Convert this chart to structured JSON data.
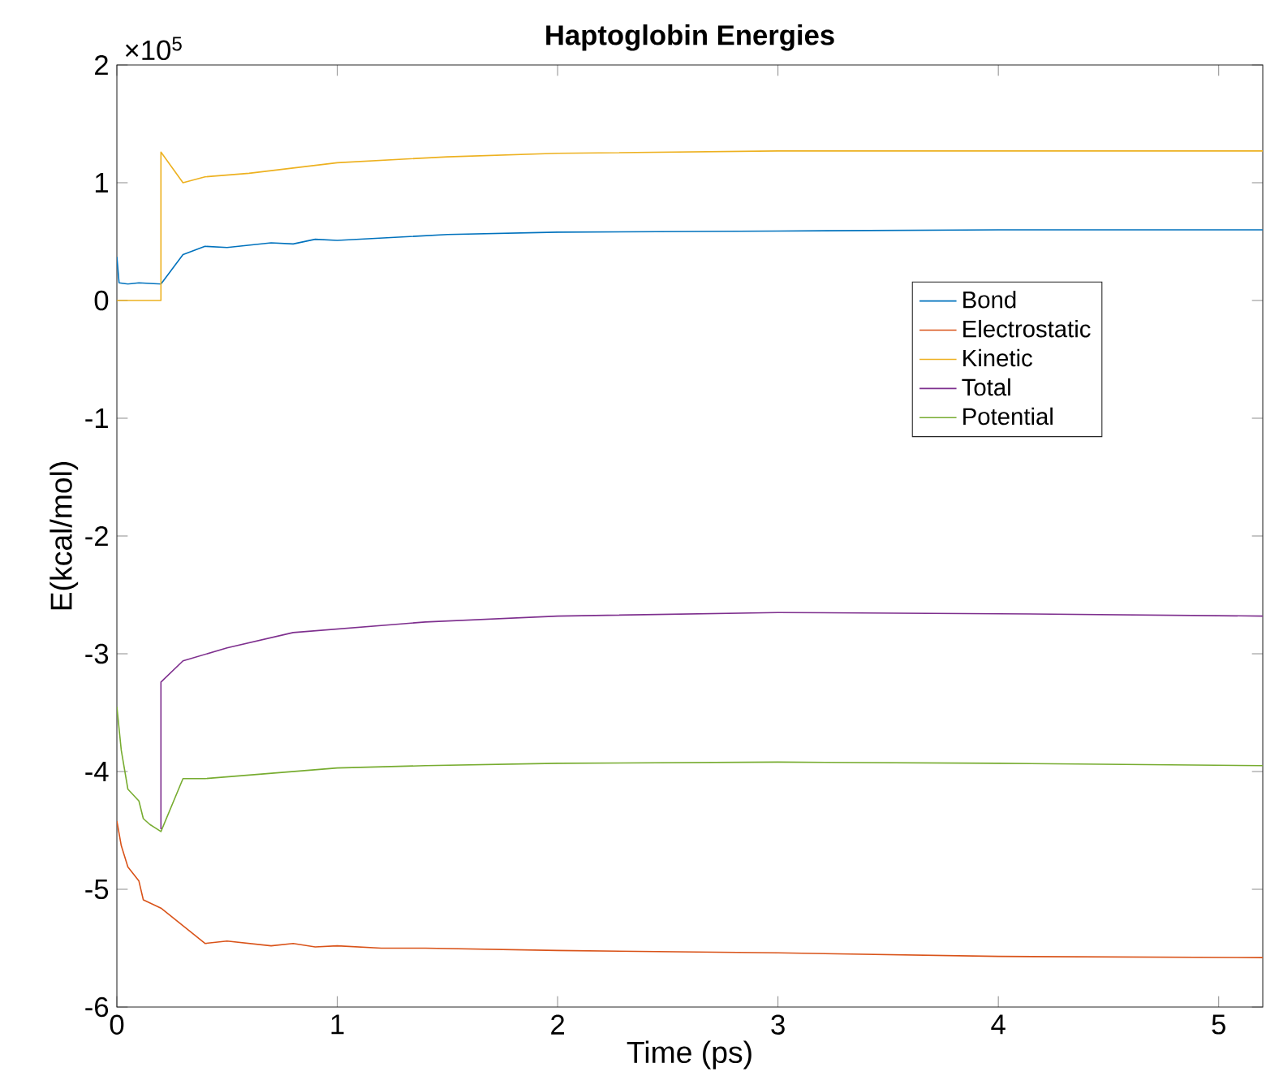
{
  "chart_data": {
    "type": "line",
    "title": "Haptoglobin Energies",
    "xlabel": "Time (ps)",
    "ylabel": "E(kcal/mol)",
    "xlim": [
      0,
      5.2
    ],
    "xticks": [
      0,
      1,
      2,
      3,
      4,
      5
    ],
    "ylim": [
      -6,
      2
    ],
    "yticks": [
      -6,
      -5,
      -4,
      -3,
      -2,
      -1,
      0,
      1,
      2
    ],
    "annotations": [
      "×10$^{5}$"
    ],
    "legend": "right",
    "series": [
      {
        "name": "Bond",
        "color": "#0072bd",
        "x": [
          0,
          0.01,
          0.05,
          0.1,
          0.2,
          0.3,
          0.4,
          0.5,
          0.7,
          0.8,
          0.9,
          1.0,
          1.5,
          2,
          3,
          4,
          5.2
        ],
        "values": [
          0.37,
          0.15,
          0.14,
          0.15,
          0.14,
          0.39,
          0.46,
          0.45,
          0.49,
          0.48,
          0.52,
          0.51,
          0.56,
          0.58,
          0.59,
          0.6,
          0.6
        ]
      },
      {
        "name": "Electrostatic",
        "color": "#d95319",
        "x": [
          0,
          0.02,
          0.05,
          0.1,
          0.12,
          0.2,
          0.4,
          0.5,
          0.7,
          0.8,
          0.9,
          1.0,
          1.2,
          1.4,
          2,
          3,
          4,
          5.2
        ],
        "values": [
          -4.42,
          -4.63,
          -4.81,
          -4.93,
          -5.09,
          -5.16,
          -5.46,
          -5.44,
          -5.48,
          -5.46,
          -5.49,
          -5.48,
          -5.5,
          -5.5,
          -5.52,
          -5.54,
          -5.57,
          -5.58
        ]
      },
      {
        "name": "Kinetic",
        "color": "#edb120",
        "x": [
          0,
          0.2,
          0.2,
          0.3,
          0.4,
          0.6,
          1.0,
          1.5,
          2,
          3,
          4,
          5.2
        ],
        "values": [
          0,
          0,
          1.26,
          1.0,
          1.05,
          1.08,
          1.17,
          1.22,
          1.25,
          1.27,
          1.27,
          1.27
        ]
      },
      {
        "name": "Total",
        "color": "#7e2f8e",
        "x": [
          0.2,
          0.2,
          0.3,
          0.5,
          0.8,
          1.0,
          1.4,
          2,
          3,
          4,
          5.2
        ],
        "values": [
          -4.49,
          -3.24,
          -3.06,
          -2.95,
          -2.82,
          -2.79,
          -2.73,
          -2.68,
          -2.65,
          -2.66,
          -2.68
        ]
      },
      {
        "name": "Potential",
        "color": "#77ac30",
        "x": [
          0,
          0.02,
          0.05,
          0.1,
          0.12,
          0.15,
          0.2,
          0.3,
          0.4,
          0.6,
          1.0,
          1.4,
          2,
          3,
          4,
          5.2
        ],
        "values": [
          -3.45,
          -3.82,
          -4.15,
          -4.25,
          -4.4,
          -4.45,
          -4.51,
          -4.06,
          -4.06,
          -4.03,
          -3.97,
          -3.95,
          -3.93,
          -3.92,
          -3.93,
          -3.95
        ]
      }
    ]
  }
}
